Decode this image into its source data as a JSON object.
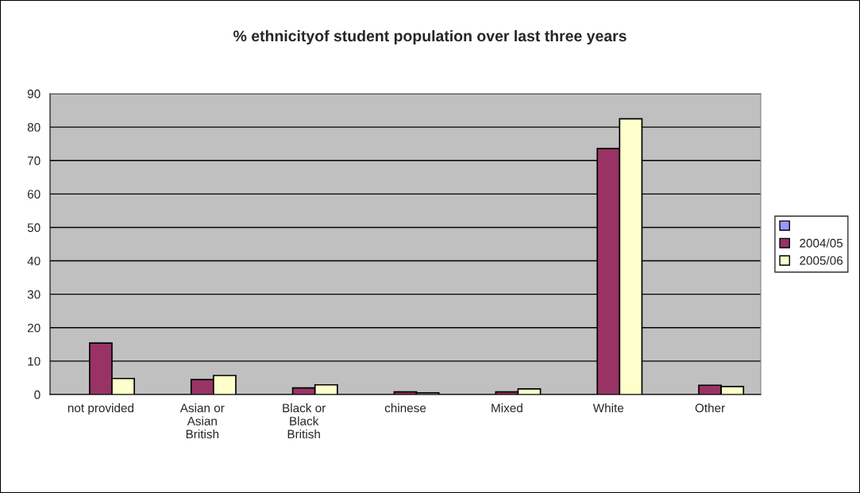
{
  "chart_data": {
    "type": "bar",
    "title": "% ethnicityof student population over last three years",
    "categories": [
      "not provided",
      "Asian or\nAsian\nBritish",
      "Black or\nBlack\nBritish",
      "chinese",
      "Mixed",
      "White",
      "Other"
    ],
    "series": [
      {
        "color": "#9999ff",
        "values": [
          null,
          null,
          null,
          null,
          null,
          null,
          null
        ]
      },
      {
        "name": "2004/05",
        "color": "#993366",
        "values": [
          15.4,
          4.5,
          2.0,
          0.8,
          0.8,
          73.6,
          2.8
        ]
      },
      {
        "name": "2005/06",
        "color": "#ffffcc",
        "values": [
          4.8,
          5.7,
          2.9,
          0.5,
          1.7,
          82.5,
          2.4
        ]
      }
    ],
    "ylim": [
      0,
      90
    ],
    "yticks": [
      0,
      10,
      20,
      30,
      40,
      50,
      60,
      70,
      80,
      90
    ],
    "grid": "y",
    "legend": "right"
  }
}
